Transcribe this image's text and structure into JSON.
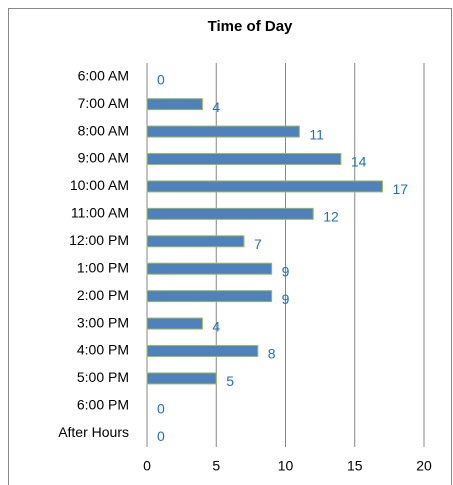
{
  "chart_data": {
    "type": "bar",
    "orientation": "horizontal",
    "title": "Time of Day",
    "categories": [
      "6:00 AM",
      "7:00 AM",
      "8:00 AM",
      "9:00 AM",
      "10:00 AM",
      "11:00 AM",
      "12:00 PM",
      "1:00 PM",
      "2:00 PM",
      "3:00 PM",
      "4:00 PM",
      "5:00 PM",
      "6:00 PM",
      "After Hours"
    ],
    "values": [
      0,
      4,
      11,
      14,
      17,
      12,
      7,
      9,
      9,
      4,
      8,
      5,
      0,
      0
    ],
    "color": "#4f81bd",
    "xlim": [
      0,
      20
    ],
    "xticks": [
      0,
      5,
      10,
      15,
      20
    ],
    "grid": true
  }
}
